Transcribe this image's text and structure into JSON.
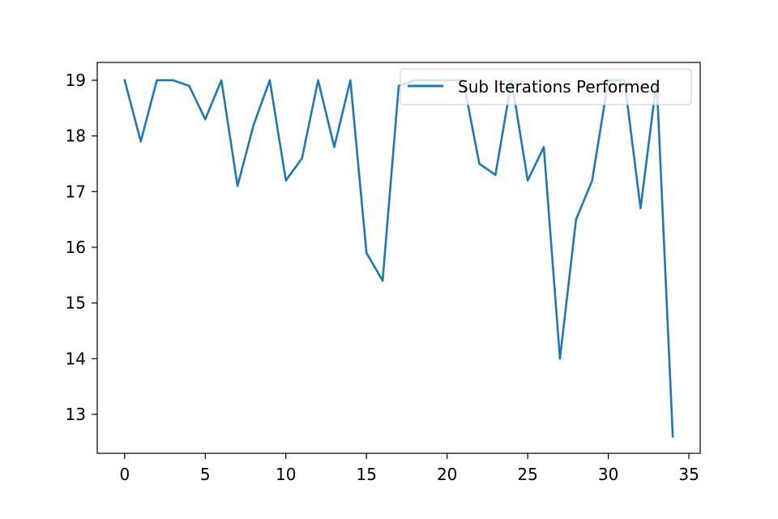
{
  "chart_data": {
    "type": "line",
    "title": "",
    "xlabel": "",
    "ylabel": "",
    "xlim": [
      -1.7,
      35.7
    ],
    "ylim": [
      12.3,
      19.32
    ],
    "x_ticks": [
      0,
      5,
      10,
      15,
      20,
      25,
      30,
      35
    ],
    "y_ticks": [
      13,
      14,
      15,
      16,
      17,
      18,
      19
    ],
    "grid": false,
    "legend_position": "top-right",
    "series": [
      {
        "name": "Sub Iterations Performed",
        "color": "#1f77b4",
        "x": [
          0,
          1,
          2,
          3,
          4,
          5,
          6,
          7,
          8,
          9,
          10,
          11,
          12,
          13,
          14,
          15,
          16,
          17,
          18,
          19,
          20,
          21,
          22,
          23,
          24,
          25,
          26,
          27,
          28,
          29,
          30,
          31,
          32,
          33,
          34
        ],
        "values": [
          19,
          17.9,
          19,
          19,
          18.9,
          18.3,
          19,
          17.1,
          18.2,
          19,
          17.2,
          17.6,
          19,
          17.8,
          19,
          15.9,
          15.4,
          18.9,
          19,
          19,
          19,
          19,
          17.5,
          17.3,
          19,
          17.2,
          17.8,
          14,
          16.5,
          17.2,
          19,
          19,
          16.7,
          19,
          12.6
        ]
      }
    ]
  }
}
